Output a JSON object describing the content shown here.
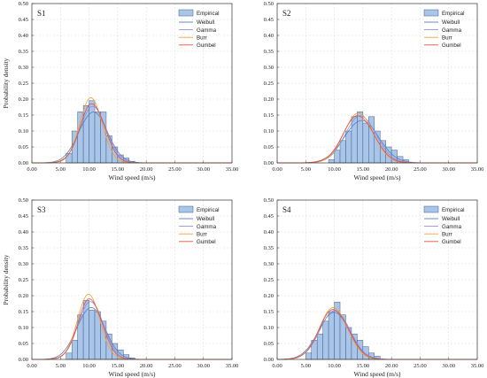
{
  "chart_data": [
    {
      "type": "bar",
      "panel_label": "S1",
      "xlabel": "Wind speed (m/s)",
      "ylabel": "Probability density",
      "xlim": [
        0,
        35
      ],
      "ylim": [
        0,
        0.5
      ],
      "xticks": [
        "0.00",
        "5.00",
        "10.00",
        "15.00",
        "20.00",
        "25.00",
        "30.00",
        "35.00"
      ],
      "yticks": [
        "0.00",
        "0.05",
        "0.10",
        "0.15",
        "0.20",
        "0.25",
        "0.30",
        "0.35",
        "0.40",
        "0.45",
        "0.50"
      ],
      "grid": true,
      "legend_position": "top-right",
      "bin_width": 1,
      "bins": [
        {
          "x": 6,
          "y": 0.03
        },
        {
          "x": 7,
          "y": 0.1
        },
        {
          "x": 8,
          "y": 0.16
        },
        {
          "x": 9,
          "y": 0.18
        },
        {
          "x": 10,
          "y": 0.195
        },
        {
          "x": 11,
          "y": 0.16
        },
        {
          "x": 12,
          "y": 0.16
        },
        {
          "x": 13,
          "y": 0.085
        },
        {
          "x": 14,
          "y": 0.05
        },
        {
          "x": 15,
          "y": 0.025
        },
        {
          "x": 16,
          "y": 0.015
        },
        {
          "x": 17,
          "y": 0.005
        }
      ],
      "curves": [
        {
          "name": "Weibull",
          "mu": 10.8,
          "sigma": 2.5,
          "skew": -0.08
        },
        {
          "name": "Gamma",
          "mu": 10.6,
          "sigma": 2.25,
          "skew": 0.12
        },
        {
          "name": "Burr",
          "mu": 10.3,
          "sigma": 1.95,
          "skew": 0.05
        },
        {
          "name": "Gumbel",
          "mu": 10.4,
          "sigma": 2.15,
          "skew": 0.22
        }
      ]
    },
    {
      "type": "bar",
      "panel_label": "S2",
      "xlabel": "Wind speed (m/s)",
      "ylabel": "",
      "xlim": [
        0,
        35
      ],
      "ylim": [
        0,
        0.5
      ],
      "xticks": [
        "0.00",
        "5.00",
        "10.00",
        "15.00",
        "20.00",
        "25.00",
        "30.00",
        "35.00"
      ],
      "yticks": [
        "0.00",
        "0.05",
        "0.10",
        "0.15",
        "0.20",
        "0.25",
        "0.30",
        "0.35",
        "0.40",
        "0.45",
        "0.50"
      ],
      "grid": true,
      "legend_position": "top-right",
      "bin_width": 1,
      "bins": [
        {
          "x": 9,
          "y": 0.01
        },
        {
          "x": 10,
          "y": 0.04
        },
        {
          "x": 11,
          "y": 0.07
        },
        {
          "x": 12,
          "y": 0.1
        },
        {
          "x": 13,
          "y": 0.145
        },
        {
          "x": 14,
          "y": 0.16
        },
        {
          "x": 15,
          "y": 0.125
        },
        {
          "x": 16,
          "y": 0.145
        },
        {
          "x": 17,
          "y": 0.1
        },
        {
          "x": 18,
          "y": 0.07
        },
        {
          "x": 19,
          "y": 0.05
        },
        {
          "x": 20,
          "y": 0.04
        },
        {
          "x": 21,
          "y": 0.02
        },
        {
          "x": 22,
          "y": 0.01
        }
      ],
      "curves": [
        {
          "name": "Weibull",
          "mu": 14.8,
          "sigma": 3.0,
          "skew": -0.05
        },
        {
          "name": "Gamma",
          "mu": 14.5,
          "sigma": 2.7,
          "skew": 0.1
        },
        {
          "name": "Burr",
          "mu": 14.2,
          "sigma": 2.55,
          "skew": 0.05
        },
        {
          "name": "Gumbel",
          "mu": 14.0,
          "sigma": 2.7,
          "skew": 0.22
        }
      ]
    },
    {
      "type": "bar",
      "panel_label": "S3",
      "xlabel": "Wind speed (m/s)",
      "ylabel": "Probability density",
      "xlim": [
        0,
        35
      ],
      "ylim": [
        0,
        0.5
      ],
      "xticks": [
        "0.00",
        "5.00",
        "10.00",
        "15.00",
        "20.00",
        "25.00",
        "30.00",
        "35.00"
      ],
      "yticks": [
        "0.00",
        "0.05",
        "0.10",
        "0.15",
        "0.20",
        "0.25",
        "0.30",
        "0.35",
        "0.40",
        "0.45",
        "0.50"
      ],
      "grid": true,
      "legend_position": "top-right",
      "bin_width": 1,
      "bins": [
        {
          "x": 6,
          "y": 0.02
        },
        {
          "x": 7,
          "y": 0.06
        },
        {
          "x": 8,
          "y": 0.14
        },
        {
          "x": 9,
          "y": 0.185
        },
        {
          "x": 10,
          "y": 0.155
        },
        {
          "x": 11,
          "y": 0.15
        },
        {
          "x": 12,
          "y": 0.12
        },
        {
          "x": 13,
          "y": 0.08
        },
        {
          "x": 14,
          "y": 0.05
        },
        {
          "x": 15,
          "y": 0.03
        },
        {
          "x": 16,
          "y": 0.015
        },
        {
          "x": 17,
          "y": 0.005
        }
      ],
      "curves": [
        {
          "name": "Weibull",
          "mu": 10.4,
          "sigma": 2.45,
          "skew": -0.08
        },
        {
          "name": "Gamma",
          "mu": 10.2,
          "sigma": 2.2,
          "skew": 0.12
        },
        {
          "name": "Burr",
          "mu": 9.9,
          "sigma": 1.95,
          "skew": 0.05
        },
        {
          "name": "Gumbel",
          "mu": 10.0,
          "sigma": 2.1,
          "skew": 0.22
        }
      ]
    },
    {
      "type": "bar",
      "panel_label": "S4",
      "xlabel": "Wind speed (m/s)",
      "ylabel": "",
      "xlim": [
        0,
        35
      ],
      "ylim": [
        0,
        0.5
      ],
      "xticks": [
        "0.00",
        "5.00",
        "10.00",
        "15.00",
        "20.00",
        "25.00",
        "30.00",
        "35.00"
      ],
      "yticks": [
        "0.00",
        "0.05",
        "0.10",
        "0.15",
        "0.20",
        "0.25",
        "0.30",
        "0.35",
        "0.40",
        "0.45",
        "0.50"
      ],
      "grid": true,
      "legend_position": "top-right",
      "bin_width": 1,
      "bins": [
        {
          "x": 5,
          "y": 0.02
        },
        {
          "x": 6,
          "y": 0.06
        },
        {
          "x": 7,
          "y": 0.08
        },
        {
          "x": 8,
          "y": 0.12
        },
        {
          "x": 9,
          "y": 0.15
        },
        {
          "x": 10,
          "y": 0.18
        },
        {
          "x": 11,
          "y": 0.14
        },
        {
          "x": 12,
          "y": 0.1
        },
        {
          "x": 13,
          "y": 0.08
        },
        {
          "x": 14,
          "y": 0.06
        },
        {
          "x": 15,
          "y": 0.04
        },
        {
          "x": 16,
          "y": 0.02
        },
        {
          "x": 17,
          "y": 0.01
        }
      ],
      "curves": [
        {
          "name": "Weibull",
          "mu": 10.0,
          "sigma": 2.7,
          "skew": -0.05
        },
        {
          "name": "Gamma",
          "mu": 10.0,
          "sigma": 2.6,
          "skew": 0.1
        },
        {
          "name": "Burr",
          "mu": 9.8,
          "sigma": 2.45,
          "skew": 0.05
        },
        {
          "name": "Gumbel",
          "mu": 9.7,
          "sigma": 2.55,
          "skew": 0.22
        }
      ]
    }
  ],
  "legend": {
    "empirical_label": "Empirical",
    "entries": [
      {
        "name": "Weibull",
        "color": "#5a7fb8"
      },
      {
        "name": "Gamma",
        "color": "#8e8ee0"
      },
      {
        "name": "Burr",
        "color": "#f0a23a"
      },
      {
        "name": "Gumbel",
        "color": "#e8503c"
      }
    ],
    "bar_fill": "#a9c5e8",
    "bar_stroke": "#3f5f8f"
  }
}
